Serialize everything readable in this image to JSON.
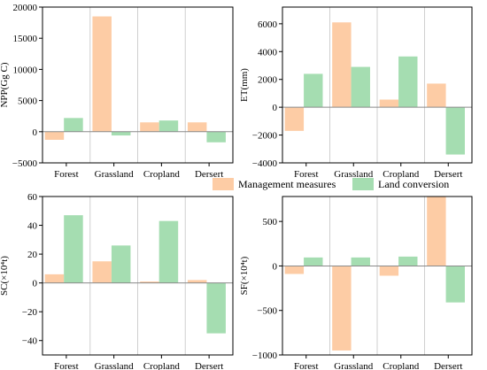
{
  "legend": {
    "items": [
      {
        "label": "Management measures",
        "color": "#fdcca5"
      },
      {
        "label": "Land conversion",
        "color": "#a5ddb1"
      }
    ]
  },
  "chart_data": [
    {
      "type": "bar",
      "ylabel": "NPP(Gg C)",
      "categories": [
        "Forest",
        "Grassland",
        "Cropland",
        "Dersert"
      ],
      "series": [
        {
          "name": "Management measures",
          "values": [
            -1300,
            18500,
            1500,
            1500
          ]
        },
        {
          "name": "Land conversion",
          "values": [
            2200,
            -600,
            1800,
            -1700
          ]
        }
      ],
      "ylim": [
        -5000,
        20000
      ],
      "yticks": [
        -5000,
        0,
        5000,
        10000,
        15000,
        20000
      ],
      "grid": false
    },
    {
      "type": "bar",
      "ylabel": "ET(mm)",
      "categories": [
        "Forest",
        "Grassland",
        "Cropland",
        "Dersert"
      ],
      "series": [
        {
          "name": "Management measures",
          "values": [
            -1700,
            6100,
            550,
            1700
          ]
        },
        {
          "name": "Land conversion",
          "values": [
            2400,
            2900,
            3650,
            -3400
          ]
        }
      ],
      "ylim": [
        -4000,
        7200
      ],
      "yticks": [
        -4000,
        -2000,
        0,
        2000,
        4000,
        6000
      ],
      "grid": false
    },
    {
      "type": "bar",
      "ylabel": "SC(×10⁴t)",
      "categories": [
        "Forest",
        "Grassland",
        "Cropland",
        "Dersert"
      ],
      "series": [
        {
          "name": "Management measures",
          "values": [
            6,
            15,
            1,
            2
          ]
        },
        {
          "name": "Land conversion",
          "values": [
            47,
            26,
            43,
            -35
          ]
        }
      ],
      "ylim": [
        -50,
        60
      ],
      "yticks": [
        -40,
        -20,
        0,
        20,
        40,
        60
      ],
      "grid": false
    },
    {
      "type": "bar",
      "ylabel": "SF(×10⁴t)",
      "categories": [
        "Forest",
        "Grassland",
        "Cropland",
        "Dersert"
      ],
      "series": [
        {
          "name": "Management measures",
          "values": [
            -90,
            -950,
            -110,
            780
          ]
        },
        {
          "name": "Land conversion",
          "values": [
            95,
            95,
            105,
            -410
          ]
        }
      ],
      "ylim": [
        -1000,
        780
      ],
      "yticks": [
        -1000,
        -500,
        0,
        500
      ],
      "grid": false
    }
  ]
}
